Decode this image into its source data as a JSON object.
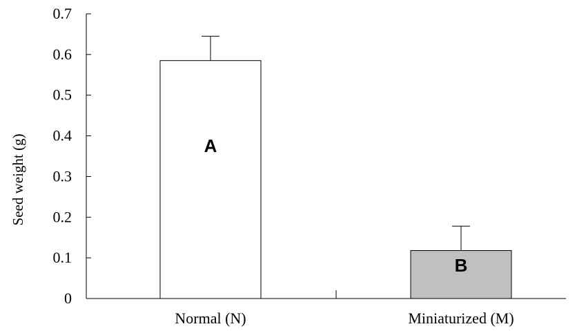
{
  "chart_data": {
    "type": "bar",
    "title": "",
    "xlabel": "",
    "ylabel": "Seed weight (g)",
    "ylim": [
      0,
      0.7
    ],
    "yticks": [
      "0",
      "0.1",
      "0.2",
      "0.3",
      "0.4",
      "0.5",
      "0.6",
      "0.7"
    ],
    "categories": [
      "Normal (N)",
      "Miniaturized (M)"
    ],
    "values": [
      0.585,
      0.118
    ],
    "error_upper": [
      0.06,
      0.06
    ],
    "bar_labels": [
      "A",
      "B"
    ],
    "bar_colors": [
      "#ffffff",
      "#c0c0c0"
    ],
    "grid": false,
    "legend": "none"
  }
}
